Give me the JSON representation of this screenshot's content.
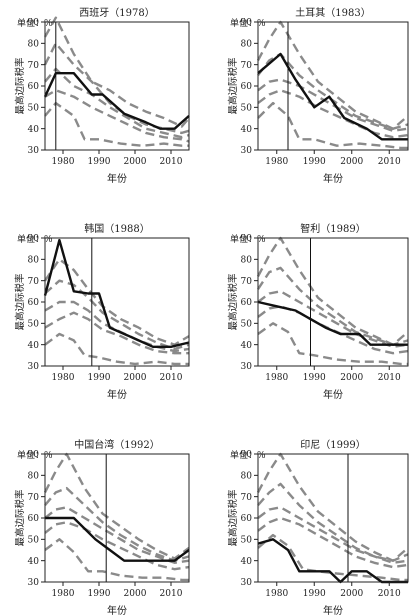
{
  "chart_data": [
    {
      "type": "line",
      "title": "西班牙（1978）",
      "unit_label": "单位：%",
      "ylabel": "最高边际税率",
      "xlabel": "年份",
      "reform_year": 1978,
      "xlim": [
        1975,
        2015
      ],
      "ylim": [
        30,
        90
      ],
      "xticks": [
        "1980",
        "1990",
        "2000",
        "2010"
      ],
      "yticks": [
        "30",
        "40",
        "50",
        "60",
        "70",
        "80",
        "90"
      ],
      "series": [
        {
          "x": [
            1975,
            1978,
            1983,
            1988,
            1991,
            1997,
            2003,
            2007,
            2011,
            2015
          ],
          "y": [
            55,
            66,
            66,
            56,
            56,
            47,
            43,
            40,
            40,
            46
          ]
        }
      ],
      "comparison": [
        {
          "x": [
            1975,
            1978,
            1983,
            1988,
            1993,
            1998,
            2003,
            2008,
            2013,
            2015
          ],
          "y": [
            83,
            92,
            75,
            62,
            58,
            52,
            48,
            45,
            41,
            45
          ]
        },
        {
          "x": [
            1975,
            1978,
            1983,
            1988,
            1993,
            1998,
            2003,
            2008,
            2013,
            2015
          ],
          "y": [
            70,
            80,
            70,
            62,
            52,
            46,
            42,
            40,
            38,
            39
          ]
        },
        {
          "x": [
            1975,
            1978,
            1983,
            1988,
            1993,
            1998,
            2003,
            2008,
            2013,
            2015
          ],
          "y": [
            62,
            68,
            60,
            56,
            50,
            45,
            40,
            38,
            36,
            37
          ]
        },
        {
          "x": [
            1975,
            1978,
            1983,
            1988,
            1993,
            1998,
            2003,
            2008,
            2013,
            2015
          ],
          "y": [
            55,
            58,
            55,
            50,
            46,
            42,
            38,
            36,
            35,
            34
          ]
        },
        {
          "x": [
            1975,
            1978,
            1983,
            1986,
            1990,
            1996,
            2002,
            2008,
            2013,
            2015
          ],
          "y": [
            46,
            52,
            46,
            35,
            35,
            33,
            32,
            33,
            32,
            32
          ]
        }
      ]
    },
    {
      "type": "line",
      "title": "土耳其（1983）",
      "unit_label": "单位：%",
      "ylabel": "最高边际税率",
      "xlabel": "年份",
      "reform_year": 1983,
      "xlim": [
        1975,
        2015
      ],
      "ylim": [
        30,
        90
      ],
      "xticks": [
        "1980",
        "1990",
        "2000",
        "2010"
      ],
      "yticks": [
        "30",
        "40",
        "50",
        "60",
        "70",
        "80",
        "90"
      ],
      "series": [
        {
          "x": [
            1975,
            1981,
            1985,
            1990,
            1994,
            1998,
            2004,
            2008,
            2015
          ],
          "y": [
            66,
            75,
            63,
            50,
            55,
            45,
            40,
            35,
            35
          ]
        }
      ],
      "comparison": [
        {
          "x": [
            1975,
            1978,
            1981,
            1986,
            1991,
            1996,
            2001,
            2006,
            2011,
            2015
          ],
          "y": [
            72,
            82,
            90,
            75,
            62,
            55,
            48,
            44,
            40,
            46
          ]
        },
        {
          "x": [
            1975,
            1978,
            1981,
            1986,
            1991,
            1996,
            2001,
            2006,
            2011,
            2015
          ],
          "y": [
            65,
            72,
            75,
            65,
            58,
            52,
            46,
            43,
            40,
            42
          ]
        },
        {
          "x": [
            1975,
            1978,
            1981,
            1986,
            1991,
            1996,
            2001,
            2006,
            2011,
            2015
          ],
          "y": [
            58,
            62,
            63,
            60,
            55,
            50,
            45,
            42,
            39,
            40
          ]
        },
        {
          "x": [
            1975,
            1978,
            1981,
            1986,
            1991,
            1996,
            2001,
            2006,
            2011,
            2015
          ],
          "y": [
            52,
            56,
            58,
            55,
            50,
            46,
            42,
            38,
            36,
            37
          ]
        },
        {
          "x": [
            1975,
            1979,
            1983,
            1986,
            1990,
            1996,
            2002,
            2008,
            2013,
            2015
          ],
          "y": [
            45,
            52,
            46,
            35,
            35,
            32,
            33,
            32,
            31,
            31
          ]
        }
      ]
    },
    {
      "type": "line",
      "title": "韩国（1988）",
      "unit_label": "单位：%",
      "ylabel": "最高边际税率",
      "xlabel": "年份",
      "reform_year": 1988,
      "xlim": [
        1975,
        2015
      ],
      "ylim": [
        30,
        90
      ],
      "xticks": [
        "1980",
        "1990",
        "2000",
        "2010"
      ],
      "yticks": [
        "30",
        "40",
        "50",
        "60",
        "70",
        "80",
        "90"
      ],
      "series": [
        {
          "x": [
            1975,
            1979,
            1983,
            1987,
            1990,
            1993,
            1997,
            2001,
            2005,
            2010,
            2015
          ],
          "y": [
            63,
            89,
            65,
            64,
            64,
            48,
            45,
            42,
            39,
            39,
            41
          ]
        }
      ],
      "comparison": [
        {
          "x": [
            1975,
            1979,
            1983,
            1987,
            1991,
            1996,
            2001,
            2006,
            2011,
            2015
          ],
          "y": [
            70,
            80,
            75,
            66,
            58,
            52,
            48,
            43,
            40,
            44
          ]
        },
        {
          "x": [
            1975,
            1979,
            1983,
            1987,
            1991,
            1996,
            2001,
            2006,
            2011,
            2015
          ],
          "y": [
            64,
            70,
            68,
            62,
            55,
            50,
            45,
            41,
            38,
            40
          ]
        },
        {
          "x": [
            1975,
            1979,
            1983,
            1987,
            1991,
            1996,
            2001,
            2006,
            2011,
            2015
          ],
          "y": [
            56,
            60,
            60,
            56,
            50,
            46,
            42,
            39,
            37,
            38
          ]
        },
        {
          "x": [
            1975,
            1979,
            1983,
            1987,
            1991,
            1996,
            2001,
            2006,
            2011,
            2015
          ],
          "y": [
            48,
            52,
            55,
            52,
            47,
            44,
            40,
            37,
            36,
            36
          ]
        },
        {
          "x": [
            1975,
            1979,
            1983,
            1986,
            1990,
            1995,
            2000,
            2006,
            2011,
            2015
          ],
          "y": [
            40,
            45,
            42,
            35,
            34,
            32,
            31,
            32,
            31,
            31
          ]
        }
      ]
    },
    {
      "type": "line",
      "title": "智利（1989）",
      "unit_label": "单位：%",
      "ylabel": "最高边际税率",
      "xlabel": "年份",
      "reform_year": 1989,
      "xlim": [
        1975,
        2015
      ],
      "ylim": [
        30,
        90
      ],
      "xticks": [
        "1980",
        "1990",
        "2000",
        "2010"
      ],
      "yticks": [
        "30",
        "40",
        "50",
        "60",
        "70",
        "80",
        "90"
      ],
      "series": [
        {
          "x": [
            1975,
            1980,
            1985,
            1989,
            1993,
            1997,
            2002,
            2005,
            2010,
            2015
          ],
          "y": [
            60,
            58,
            56,
            52,
            48,
            45,
            45,
            40,
            40,
            40
          ]
        }
      ],
      "comparison": [
        {
          "x": [
            1975,
            1978,
            1981,
            1986,
            1991,
            1996,
            2001,
            2006,
            2011,
            2015
          ],
          "y": [
            72,
            82,
            90,
            75,
            62,
            55,
            48,
            44,
            40,
            46
          ]
        },
        {
          "x": [
            1975,
            1978,
            1981,
            1986,
            1991,
            1996,
            2001,
            2006,
            2011,
            2015
          ],
          "y": [
            66,
            74,
            76,
            66,
            58,
            52,
            46,
            43,
            40,
            42
          ]
        },
        {
          "x": [
            1975,
            1978,
            1981,
            1986,
            1991,
            1996,
            2001,
            2006,
            2011,
            2015
          ],
          "y": [
            60,
            64,
            65,
            60,
            55,
            50,
            45,
            42,
            39,
            40
          ]
        },
        {
          "x": [
            1975,
            1978,
            1981,
            1986,
            1991,
            1996,
            2001,
            2006,
            2011,
            2015
          ],
          "y": [
            53,
            57,
            58,
            55,
            50,
            46,
            42,
            38,
            36,
            37
          ]
        },
        {
          "x": [
            1975,
            1979,
            1983,
            1986,
            1990,
            1996,
            2002,
            2008,
            2013,
            2015
          ],
          "y": [
            45,
            50,
            46,
            36,
            35,
            33,
            32,
            32,
            31,
            31
          ]
        }
      ]
    },
    {
      "type": "line",
      "title": "中国台湾（1992）",
      "unit_label": "单位：%",
      "ylabel": "最高边际税率",
      "xlabel": "年份",
      "reform_year": 1992,
      "xlim": [
        1975,
        2015
      ],
      "ylim": [
        30,
        90
      ],
      "xticks": [
        "1980",
        "1990",
        "2000",
        "2010"
      ],
      "yticks": [
        "30",
        "40",
        "50",
        "60",
        "70",
        "80",
        "90"
      ],
      "series": [
        {
          "x": [
            1975,
            1979,
            1983,
            1989,
            1993,
            1997,
            2002,
            2007,
            2011,
            2015
          ],
          "y": [
            60,
            60,
            60,
            50,
            45,
            40,
            40,
            40,
            40,
            45
          ]
        }
      ],
      "comparison": [
        {
          "x": [
            1975,
            1978,
            1981,
            1986,
            1991,
            1996,
            2001,
            2006,
            2011,
            2015
          ],
          "y": [
            72,
            82,
            90,
            74,
            62,
            56,
            50,
            45,
            41,
            46
          ]
        },
        {
          "x": [
            1975,
            1978,
            1981,
            1986,
            1991,
            1996,
            2001,
            2006,
            2011,
            2015
          ],
          "y": [
            66,
            72,
            74,
            66,
            58,
            52,
            47,
            43,
            40,
            42
          ]
        },
        {
          "x": [
            1975,
            1978,
            1981,
            1986,
            1991,
            1996,
            2001,
            2006,
            2011,
            2015
          ],
          "y": [
            60,
            64,
            65,
            60,
            55,
            50,
            45,
            42,
            39,
            40
          ]
        },
        {
          "x": [
            1975,
            1978,
            1981,
            1986,
            1991,
            1996,
            2001,
            2006,
            2011,
            2015
          ],
          "y": [
            53,
            57,
            58,
            55,
            50,
            46,
            42,
            38,
            36,
            37
          ]
        },
        {
          "x": [
            1975,
            1979,
            1983,
            1987,
            1991,
            1996,
            2002,
            2008,
            2013,
            2015
          ],
          "y": [
            45,
            50,
            44,
            35,
            35,
            33,
            32,
            32,
            31,
            31
          ]
        }
      ]
    },
    {
      "type": "line",
      "title": "印尼（1999）",
      "unit_label": "单位：%",
      "ylabel": "最高边际税率",
      "xlabel": "年份",
      "reform_year": 1999,
      "xlim": [
        1975,
        2015
      ],
      "ylim": [
        30,
        90
      ],
      "xticks": [
        "1980",
        "1990",
        "2000",
        "2010"
      ],
      "yticks": [
        "30",
        "40",
        "50",
        "60",
        "70",
        "80",
        "90"
      ],
      "series": [
        {
          "x": [
            1975,
            1979,
            1983,
            1986,
            1990,
            1994,
            1997,
            2000,
            2004,
            2008,
            2015
          ],
          "y": [
            48,
            50,
            45,
            35,
            35,
            35,
            30,
            35,
            35,
            30,
            30
          ]
        }
      ],
      "comparison": [
        {
          "x": [
            1975,
            1978,
            1981,
            1986,
            1991,
            1996,
            2001,
            2006,
            2011,
            2015
          ],
          "y": [
            72,
            82,
            90,
            75,
            63,
            56,
            49,
            44,
            40,
            46
          ]
        },
        {
          "x": [
            1975,
            1978,
            1981,
            1986,
            1991,
            1996,
            2001,
            2006,
            2011,
            2015
          ],
          "y": [
            66,
            72,
            76,
            66,
            58,
            52,
            46,
            42,
            40,
            43
          ]
        },
        {
          "x": [
            1975,
            1978,
            1981,
            1986,
            1991,
            1996,
            2001,
            2006,
            2011,
            2015
          ],
          "y": [
            60,
            64,
            65,
            60,
            55,
            50,
            45,
            42,
            39,
            40
          ]
        },
        {
          "x": [
            1975,
            1978,
            1981,
            1986,
            1991,
            1996,
            2001,
            2006,
            2011,
            2015
          ],
          "y": [
            54,
            58,
            60,
            57,
            52,
            47,
            42,
            39,
            37,
            38
          ]
        },
        {
          "x": [
            1975,
            1979,
            1983,
            1987,
            1991,
            1996,
            2002,
            2008,
            2013,
            2015
          ],
          "y": [
            46,
            52,
            47,
            36,
            35,
            34,
            33,
            32,
            31,
            31
          ]
        }
      ]
    }
  ]
}
